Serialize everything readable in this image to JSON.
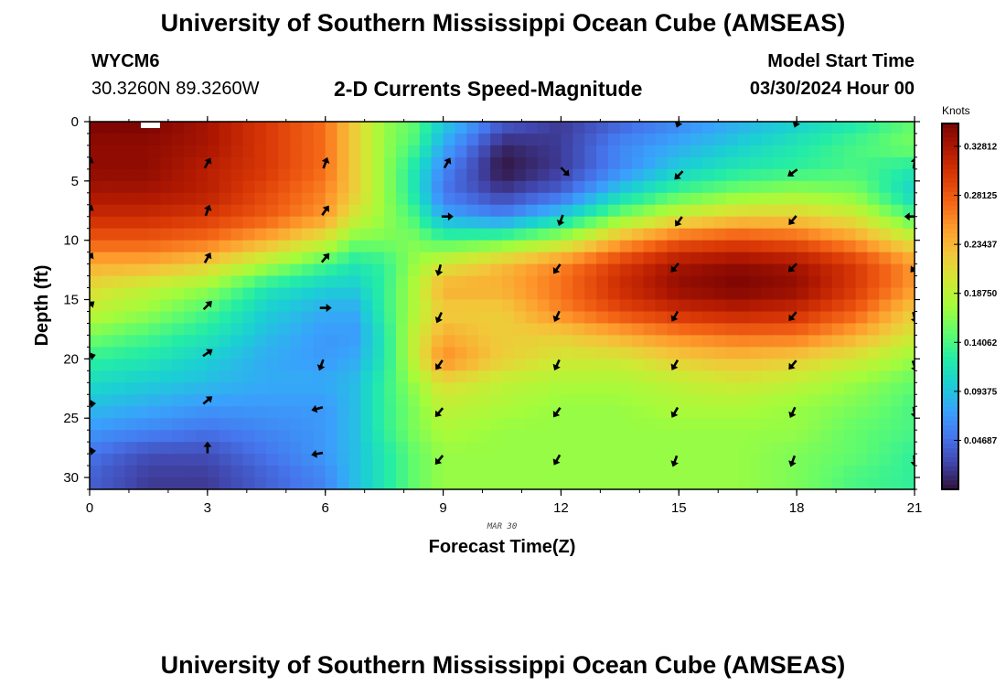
{
  "header": {
    "title": "University of Southern Mississippi Ocean Cube (AMSEAS)",
    "station_id": "WYCM6",
    "coords": "30.3260N  89.3260W",
    "subtitle": "2-D Currents Speed-Magnitude",
    "model_start_label": "Model Start Time",
    "model_start_value": "03/30/2024 Hour 00"
  },
  "footer": {
    "title": "University of Southern Mississippi Ocean Cube (AMSEAS)"
  },
  "chart_data": {
    "type": "heatmap",
    "title": "2-D Currents Speed-Magnitude",
    "xlabel": "Forecast Time(Z)",
    "ylabel": "Depth (ft)",
    "date_label": "MAR 30",
    "x_ticks": [
      0,
      3,
      6,
      9,
      12,
      15,
      18,
      21
    ],
    "y_ticks": [
      0,
      5,
      10,
      15,
      20,
      25,
      30
    ],
    "xlim": [
      0,
      21
    ],
    "ylim": [
      0,
      31
    ],
    "colorbar": {
      "label": "Knots",
      "range": [
        0.0,
        0.35
      ],
      "ticks": [
        "0.32812",
        "0.28125",
        "0.23437",
        "0.18750",
        "0.14062",
        "0.09375",
        "0.04687"
      ],
      "tick_values": [
        0.32812,
        0.28125,
        0.23437,
        0.1875,
        0.14062,
        0.09375,
        0.04687
      ],
      "colors": [
        "#30123b",
        "#4145ab",
        "#4675ed",
        "#39a2fc",
        "#1bcfd4",
        "#24eca6",
        "#61fc6c",
        "#a4fc3b",
        "#d1e834",
        "#f3c63a",
        "#fe9b2d",
        "#f36315",
        "#d93806",
        "#b11901",
        "#7a0403"
      ]
    },
    "speed_field": {
      "description": "Estimated speed magnitude (knots) sampled on a coarse grid of forecast hours x depths",
      "x": [
        0,
        1.5,
        3,
        4.5,
        6,
        6.75,
        7.5,
        8.25,
        9,
        10.5,
        12,
        13.5,
        15,
        16.5,
        18,
        19.5,
        21
      ],
      "y": [
        0,
        2,
        4,
        6,
        8,
        10,
        12,
        14,
        16,
        18,
        20,
        22,
        24,
        26,
        28,
        30
      ],
      "values": [
        [
          0.35,
          0.35,
          0.33,
          0.3,
          0.27,
          0.22,
          0.17,
          0.15,
          0.1,
          0.04,
          0.02,
          0.04,
          0.06,
          0.08,
          0.1,
          0.12,
          0.15
        ],
        [
          0.34,
          0.34,
          0.33,
          0.3,
          0.27,
          0.22,
          0.17,
          0.14,
          0.08,
          0.01,
          0.02,
          0.06,
          0.08,
          0.1,
          0.12,
          0.14,
          0.16
        ],
        [
          0.34,
          0.34,
          0.32,
          0.3,
          0.27,
          0.22,
          0.17,
          0.12,
          0.06,
          0.0,
          0.02,
          0.06,
          0.1,
          0.12,
          0.13,
          0.14,
          0.12
        ],
        [
          0.33,
          0.33,
          0.32,
          0.29,
          0.26,
          0.22,
          0.17,
          0.12,
          0.05,
          0.02,
          0.04,
          0.1,
          0.14,
          0.16,
          0.17,
          0.16,
          0.1
        ],
        [
          0.31,
          0.31,
          0.3,
          0.28,
          0.25,
          0.2,
          0.17,
          0.14,
          0.08,
          0.06,
          0.1,
          0.16,
          0.2,
          0.22,
          0.22,
          0.2,
          0.14
        ],
        [
          0.28,
          0.28,
          0.27,
          0.24,
          0.2,
          0.16,
          0.16,
          0.16,
          0.14,
          0.15,
          0.18,
          0.24,
          0.28,
          0.29,
          0.28,
          0.25,
          0.2
        ],
        [
          0.24,
          0.24,
          0.22,
          0.18,
          0.14,
          0.12,
          0.13,
          0.17,
          0.2,
          0.23,
          0.26,
          0.3,
          0.33,
          0.34,
          0.33,
          0.3,
          0.25
        ],
        [
          0.21,
          0.19,
          0.17,
          0.12,
          0.1,
          0.1,
          0.13,
          0.18,
          0.24,
          0.24,
          0.27,
          0.31,
          0.34,
          0.35,
          0.34,
          0.3,
          0.25
        ],
        [
          0.19,
          0.17,
          0.14,
          0.1,
          0.08,
          0.08,
          0.13,
          0.18,
          0.22,
          0.22,
          0.26,
          0.29,
          0.31,
          0.32,
          0.31,
          0.28,
          0.22
        ],
        [
          0.16,
          0.14,
          0.12,
          0.09,
          0.07,
          0.07,
          0.12,
          0.19,
          0.24,
          0.22,
          0.22,
          0.24,
          0.26,
          0.27,
          0.27,
          0.24,
          0.2
        ],
        [
          0.13,
          0.12,
          0.1,
          0.08,
          0.07,
          0.08,
          0.12,
          0.19,
          0.26,
          0.22,
          0.2,
          0.2,
          0.22,
          0.23,
          0.22,
          0.2,
          0.17
        ],
        [
          0.11,
          0.1,
          0.09,
          0.08,
          0.08,
          0.09,
          0.13,
          0.17,
          0.21,
          0.19,
          0.18,
          0.18,
          0.19,
          0.2,
          0.19,
          0.17,
          0.15
        ],
        [
          0.09,
          0.08,
          0.07,
          0.07,
          0.07,
          0.09,
          0.13,
          0.16,
          0.19,
          0.18,
          0.17,
          0.17,
          0.18,
          0.18,
          0.17,
          0.16,
          0.14
        ],
        [
          0.07,
          0.06,
          0.05,
          0.06,
          0.07,
          0.09,
          0.13,
          0.16,
          0.18,
          0.17,
          0.17,
          0.17,
          0.17,
          0.17,
          0.17,
          0.15,
          0.14
        ],
        [
          0.05,
          0.03,
          0.03,
          0.05,
          0.07,
          0.09,
          0.12,
          0.15,
          0.17,
          0.17,
          0.17,
          0.17,
          0.17,
          0.17,
          0.16,
          0.15,
          0.13
        ],
        [
          0.04,
          0.02,
          0.02,
          0.04,
          0.06,
          0.09,
          0.12,
          0.15,
          0.17,
          0.17,
          0.17,
          0.17,
          0.17,
          0.17,
          0.16,
          0.14,
          0.13
        ]
      ]
    },
    "vectors": {
      "description": "Current direction arrows: angle in degrees (0 = right/east, 90 = up/north)",
      "x": [
        0,
        3,
        6,
        9,
        12,
        15,
        18,
        21
      ],
      "y": [
        3.5,
        7.5,
        11.5,
        15.5,
        19.5,
        23.5,
        27.5,
        4,
        8,
        12,
        16,
        20,
        24,
        28
      ],
      "points": [
        {
          "x": 0,
          "y": 3.5,
          "angle": 75
        },
        {
          "x": 3,
          "y": 3.5,
          "angle": 60
        },
        {
          "x": 6,
          "y": 3.5,
          "angle": 70
        },
        {
          "x": 0,
          "y": 7.5,
          "angle": 70
        },
        {
          "x": 3,
          "y": 7.5,
          "angle": 70
        },
        {
          "x": 6,
          "y": 7.5,
          "angle": 55
        },
        {
          "x": 0,
          "y": 11.5,
          "angle": 60
        },
        {
          "x": 3,
          "y": 11.5,
          "angle": 60
        },
        {
          "x": 6,
          "y": 11.5,
          "angle": 50
        },
        {
          "x": 0,
          "y": 15.5,
          "angle": 40
        },
        {
          "x": 3,
          "y": 15.5,
          "angle": 45
        },
        {
          "x": 6,
          "y": 15.7,
          "angle": 0
        },
        {
          "x": 0,
          "y": 19.8,
          "angle": 15
        },
        {
          "x": 3,
          "y": 19.5,
          "angle": 35
        },
        {
          "x": 5.9,
          "y": 20.5,
          "angle": 250
        },
        {
          "x": 0,
          "y": 23.8,
          "angle": 5
        },
        {
          "x": 3,
          "y": 23.5,
          "angle": 40
        },
        {
          "x": 5.8,
          "y": 24.2,
          "angle": 195
        },
        {
          "x": 0,
          "y": 27.8,
          "angle": 5
        },
        {
          "x": 3,
          "y": 27.5,
          "angle": 90
        },
        {
          "x": 5.8,
          "y": 28,
          "angle": 190
        },
        {
          "x": 9.1,
          "y": 3.5,
          "angle": 60
        },
        {
          "x": 12.1,
          "y": 4.2,
          "angle": 315
        },
        {
          "x": 15,
          "y": 4.5,
          "angle": 225
        },
        {
          "x": 17.9,
          "y": 4.3,
          "angle": 215
        },
        {
          "x": 21,
          "y": 3.5,
          "angle": 80
        },
        {
          "x": 9.1,
          "y": 8,
          "angle": 0
        },
        {
          "x": 12,
          "y": 8.3,
          "angle": 250
        },
        {
          "x": 15,
          "y": 8.4,
          "angle": 235
        },
        {
          "x": 17.9,
          "y": 8.3,
          "angle": 230
        },
        {
          "x": 20.9,
          "y": 8,
          "angle": 180
        },
        {
          "x": 8.9,
          "y": 12.5,
          "angle": 255
        },
        {
          "x": 11.9,
          "y": 12.4,
          "angle": 235
        },
        {
          "x": 14.9,
          "y": 12.3,
          "angle": 230
        },
        {
          "x": 17.9,
          "y": 12.3,
          "angle": 225
        },
        {
          "x": 21,
          "y": 12.3,
          "angle": 230
        },
        {
          "x": 8.9,
          "y": 16.5,
          "angle": 245
        },
        {
          "x": 11.9,
          "y": 16.4,
          "angle": 245
        },
        {
          "x": 14.9,
          "y": 16.4,
          "angle": 240
        },
        {
          "x": 17.9,
          "y": 16.4,
          "angle": 230
        },
        {
          "x": 21,
          "y": 16.5,
          "angle": 285
        },
        {
          "x": 8.9,
          "y": 20.5,
          "angle": 235
        },
        {
          "x": 11.9,
          "y": 20.5,
          "angle": 245
        },
        {
          "x": 14.9,
          "y": 20.5,
          "angle": 240
        },
        {
          "x": 17.9,
          "y": 20.5,
          "angle": 230
        },
        {
          "x": 21,
          "y": 20.6,
          "angle": 290
        },
        {
          "x": 8.9,
          "y": 24.5,
          "angle": 230
        },
        {
          "x": 11.9,
          "y": 24.5,
          "angle": 235
        },
        {
          "x": 14.9,
          "y": 24.5,
          "angle": 240
        },
        {
          "x": 17.9,
          "y": 24.5,
          "angle": 245
        },
        {
          "x": 21,
          "y": 24.5,
          "angle": 280
        },
        {
          "x": 8.9,
          "y": 28.5,
          "angle": 230
        },
        {
          "x": 11.9,
          "y": 28.5,
          "angle": 240
        },
        {
          "x": 14.9,
          "y": 28.6,
          "angle": 250
        },
        {
          "x": 17.9,
          "y": 28.6,
          "angle": 250
        },
        {
          "x": 21,
          "y": 28.6,
          "angle": 275
        },
        {
          "x": 15,
          "y": 0,
          "angle": 250
        },
        {
          "x": 18,
          "y": 0,
          "angle": 250
        }
      ]
    }
  }
}
